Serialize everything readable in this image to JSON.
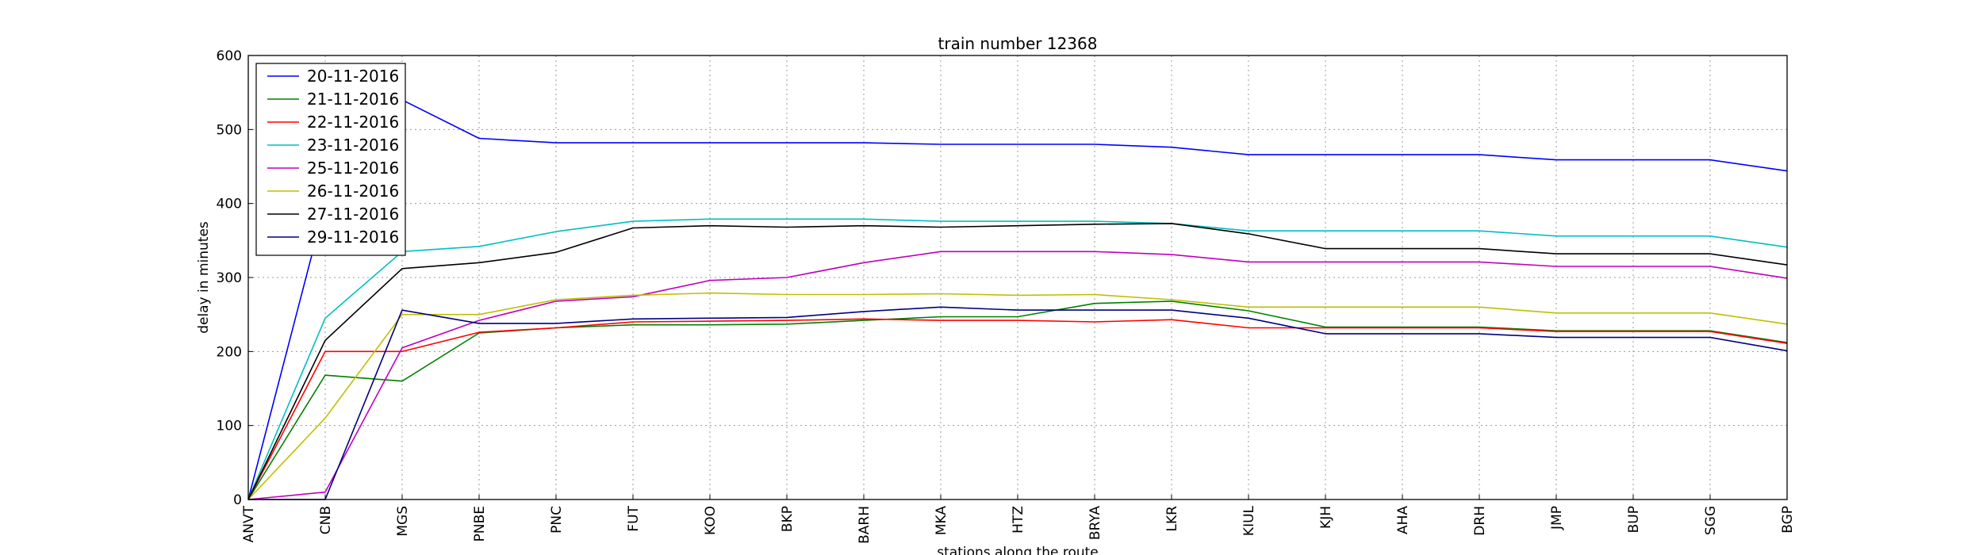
{
  "chart_data": {
    "type": "line",
    "title": "train number 12368",
    "xlabel": "stations along the route",
    "ylabel": "delay in minutes",
    "ylim": [
      0,
      600
    ],
    "yticks": [
      0,
      100,
      200,
      300,
      400,
      500,
      600
    ],
    "grid": true,
    "legend_position": "top-left",
    "categories": [
      "ANVT",
      "CNB",
      "MGS",
      "PNBE",
      "PNC",
      "FUT",
      "KOO",
      "BKP",
      "BARH",
      "MKA",
      "HTZ",
      "BRYA",
      "LKR",
      "KIUL",
      "KJH",
      "AHA",
      "DRH",
      "JMP",
      "BUP",
      "SGG",
      "BGP"
    ],
    "series": [
      {
        "name": "20-11-2016",
        "color": "#0000ff",
        "values": [
          0,
          400,
          540,
          488,
          482,
          482,
          482,
          482,
          482,
          480,
          480,
          480,
          476,
          466,
          466,
          466,
          466,
          459,
          459,
          459,
          444
        ]
      },
      {
        "name": "21-11-2016",
        "color": "#008000",
        "values": [
          0,
          168,
          160,
          225,
          232,
          236,
          236,
          237,
          242,
          247,
          247,
          265,
          268,
          255,
          233,
          233,
          233,
          228,
          228,
          228,
          212
        ]
      },
      {
        "name": "22-11-2016",
        "color": "#ff0000",
        "values": [
          0,
          200,
          200,
          226,
          232,
          240,
          241,
          242,
          244,
          242,
          242,
          240,
          243,
          232,
          232,
          232,
          232,
          227,
          227,
          227,
          211
        ]
      },
      {
        "name": "23-11-2016",
        "color": "#00bfbf",
        "values": [
          0,
          245,
          335,
          342,
          362,
          376,
          379,
          379,
          379,
          376,
          376,
          376,
          373,
          363,
          363,
          363,
          363,
          356,
          356,
          356,
          341
        ]
      },
      {
        "name": "25-11-2016",
        "color": "#bf00bf",
        "values": [
          0,
          10,
          205,
          242,
          268,
          274,
          296,
          300,
          320,
          335,
          335,
          335,
          331,
          321,
          321,
          321,
          321,
          315,
          315,
          315,
          299
        ]
      },
      {
        "name": "26-11-2016",
        "color": "#bfbf00",
        "values": [
          0,
          110,
          250,
          250,
          270,
          276,
          279,
          277,
          277,
          278,
          276,
          277,
          270,
          260,
          260,
          260,
          260,
          252,
          252,
          252,
          237
        ]
      },
      {
        "name": "27-11-2016",
        "color": "#000000",
        "values": [
          0,
          215,
          312,
          320,
          334,
          367,
          370,
          368,
          370,
          368,
          370,
          372,
          373,
          359,
          339,
          339,
          339,
          332,
          332,
          332,
          317
        ]
      },
      {
        "name": "29-11-2016",
        "color": "#000080",
        "values": [
          0,
          0,
          256,
          238,
          238,
          244,
          245,
          246,
          254,
          260,
          256,
          256,
          256,
          245,
          224,
          224,
          224,
          219,
          219,
          219,
          201
        ]
      }
    ]
  }
}
